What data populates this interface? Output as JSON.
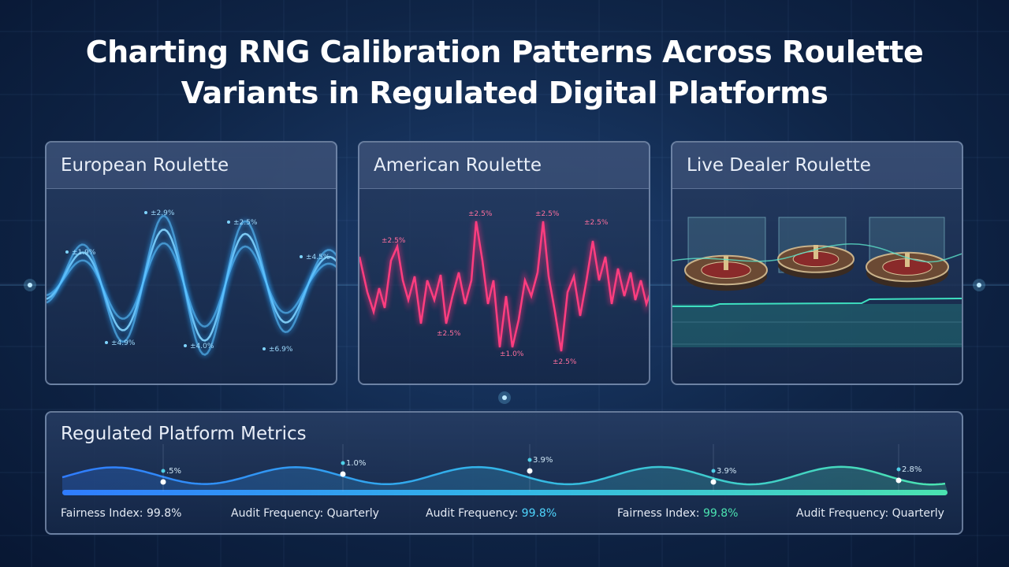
{
  "title": [
    "Charting RNG Calibration Patterns Across Roulette",
    "Variants in Regulated Digital Platforms"
  ],
  "panels": [
    {
      "title": "European Roulette",
      "annotations": [
        "±2.9%",
        "±2.5%",
        "±1.9%",
        "±4.5%",
        "±4.9%",
        "±4.0%",
        "±6.9%"
      ]
    },
    {
      "title": "American Roulette",
      "annotations": [
        "±2.5%",
        "±2.5%",
        "±2.5%",
        "±2.5%",
        "±2.5%",
        "±1.0%",
        "±2.5%"
      ]
    },
    {
      "title": "Live Dealer Roulette",
      "annotations": []
    }
  ],
  "metrics": {
    "title": "Regulated Platform Metrics",
    "markers": [
      ".5%",
      "1.0%",
      "3.9%",
      "3.9%",
      "2.8%"
    ],
    "items": [
      {
        "label": "Fairness Index:",
        "value": "99.8%"
      },
      {
        "label": "Audit Frequency:",
        "value": "Quarterly"
      },
      {
        "label": "Audit Frequency:",
        "value": "99.8%"
      },
      {
        "label": "Fairness Index:",
        "value": "99.8%"
      },
      {
        "label": "Audit Frequency:",
        "value": "Quarterly"
      }
    ]
  }
}
